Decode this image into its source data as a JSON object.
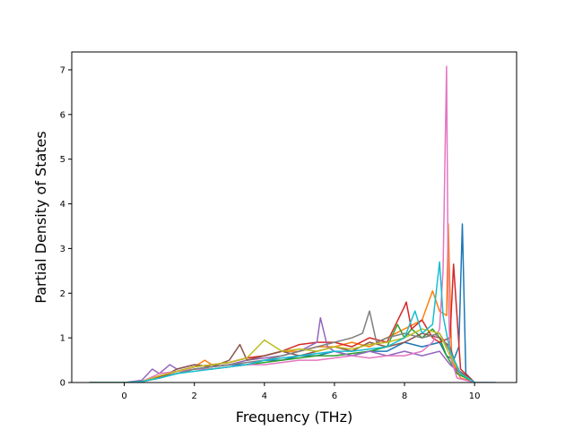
{
  "chart_data": {
    "type": "line",
    "title": "",
    "xlabel": "Frequency (THz)",
    "ylabel": "Partial Density of States",
    "xlim": [
      -1.5,
      11.2
    ],
    "ylim": [
      0,
      7.4
    ],
    "xticks": [
      0,
      2,
      4,
      6,
      8,
      10
    ],
    "yticks": [
      0,
      1,
      2,
      3,
      4,
      5,
      6,
      7
    ],
    "xtick_labels": [
      "0",
      "2",
      "4",
      "6",
      "8",
      "10"
    ],
    "ytick_labels": [
      "0",
      "1",
      "2",
      "3",
      "4",
      "5",
      "6",
      "7"
    ],
    "grid": false,
    "legend": "none",
    "series": [
      {
        "color": "#1f77b4",
        "x": [
          -1.0,
          0.0,
          0.5,
          1.0,
          1.5,
          2.0,
          2.5,
          3.0,
          3.5,
          4.0,
          4.5,
          5.0,
          5.5,
          6.0,
          6.5,
          7.0,
          7.5,
          8.0,
          8.5,
          9.0,
          9.2,
          9.4,
          9.55,
          9.65,
          9.75,
          10.0,
          10.6
        ],
        "y": [
          0,
          0,
          0.02,
          0.1,
          0.2,
          0.3,
          0.35,
          0.4,
          0.4,
          0.5,
          0.5,
          0.6,
          0.6,
          0.7,
          0.6,
          0.7,
          0.7,
          0.9,
          0.8,
          0.9,
          0.6,
          0.5,
          0.8,
          3.55,
          0.2,
          0,
          0
        ]
      },
      {
        "color": "#ff7f0e",
        "x": [
          -1.0,
          0.0,
          0.5,
          1.0,
          1.5,
          2.0,
          2.3,
          2.5,
          3.0,
          3.5,
          4.0,
          4.5,
          5.0,
          5.5,
          6.0,
          6.5,
          7.0,
          7.5,
          8.0,
          8.5,
          8.8,
          9.0,
          9.2,
          9.25,
          9.35,
          9.6,
          10.0
        ],
        "y": [
          0,
          0,
          0.03,
          0.15,
          0.25,
          0.35,
          0.5,
          0.4,
          0.45,
          0.55,
          0.6,
          0.7,
          0.7,
          0.8,
          0.8,
          0.9,
          0.8,
          1.0,
          1.2,
          1.4,
          2.05,
          1.6,
          1.5,
          3.55,
          0.5,
          0.1,
          0
        ]
      },
      {
        "color": "#2ca02c",
        "x": [
          -1.0,
          0.0,
          0.5,
          1.0,
          1.5,
          2.0,
          2.5,
          3.0,
          3.5,
          4.0,
          4.5,
          5.0,
          5.5,
          6.0,
          6.5,
          7.0,
          7.5,
          7.8,
          8.0,
          8.2,
          8.5,
          8.8,
          9.0,
          9.2,
          9.5,
          10.0
        ],
        "y": [
          0,
          0,
          0.02,
          0.1,
          0.2,
          0.3,
          0.3,
          0.35,
          0.4,
          0.45,
          0.5,
          0.55,
          0.6,
          0.6,
          0.65,
          0.7,
          0.8,
          1.3,
          1.0,
          1.2,
          1.0,
          1.2,
          1.0,
          0.6,
          0.2,
          0
        ]
      },
      {
        "color": "#d62728",
        "x": [
          -1.0,
          0.0,
          0.5,
          1.0,
          1.5,
          2.0,
          2.5,
          3.0,
          3.5,
          4.0,
          4.5,
          5.0,
          5.5,
          6.0,
          6.5,
          7.0,
          7.5,
          8.0,
          8.05,
          8.2,
          8.5,
          8.8,
          9.0,
          9.3,
          9.4,
          9.6,
          10.0
        ],
        "y": [
          0,
          0,
          0.02,
          0.12,
          0.25,
          0.35,
          0.4,
          0.45,
          0.55,
          0.6,
          0.7,
          0.85,
          0.9,
          0.9,
          0.8,
          1.0,
          0.9,
          1.7,
          1.8,
          1.2,
          1.4,
          1.0,
          0.9,
          1.0,
          2.65,
          0.3,
          0
        ]
      },
      {
        "color": "#9467bd",
        "x": [
          -1.0,
          0.0,
          0.5,
          0.8,
          1.0,
          1.3,
          1.5,
          2.0,
          2.5,
          3.0,
          3.5,
          4.0,
          4.5,
          5.0,
          5.5,
          5.6,
          5.8,
          6.0,
          6.5,
          7.0,
          7.5,
          8.0,
          8.5,
          9.0,
          9.3,
          9.6,
          10.0
        ],
        "y": [
          0,
          0,
          0.05,
          0.3,
          0.2,
          0.4,
          0.3,
          0.4,
          0.35,
          0.4,
          0.5,
          0.55,
          0.6,
          0.7,
          0.9,
          1.45,
          0.8,
          0.7,
          0.6,
          0.7,
          0.6,
          0.7,
          0.6,
          0.7,
          0.4,
          0.2,
          0
        ]
      },
      {
        "color": "#8c564b",
        "x": [
          -1.0,
          0.0,
          0.5,
          1.0,
          1.5,
          2.0,
          2.5,
          3.0,
          3.3,
          3.5,
          4.0,
          4.5,
          5.0,
          5.5,
          6.0,
          6.5,
          7.0,
          7.5,
          8.0,
          8.5,
          9.0,
          9.3,
          9.5,
          10.0
        ],
        "y": [
          0,
          0,
          0.02,
          0.1,
          0.3,
          0.4,
          0.35,
          0.5,
          0.85,
          0.5,
          0.6,
          0.7,
          0.6,
          0.7,
          0.8,
          0.7,
          0.9,
          0.8,
          0.9,
          1.1,
          1.0,
          0.8,
          0.3,
          0
        ]
      },
      {
        "color": "#e377c2",
        "x": [
          -1.0,
          0.0,
          0.5,
          1.0,
          1.5,
          2.0,
          2.5,
          3.0,
          3.5,
          4.0,
          4.5,
          5.0,
          5.5,
          6.0,
          6.5,
          7.0,
          7.5,
          8.0,
          8.5,
          8.8,
          9.0,
          9.1,
          9.2,
          9.25,
          9.3,
          9.5,
          10.0
        ],
        "y": [
          0,
          0,
          0.02,
          0.2,
          0.25,
          0.3,
          0.3,
          0.35,
          0.4,
          0.4,
          0.45,
          0.5,
          0.5,
          0.55,
          0.6,
          0.55,
          0.6,
          0.6,
          0.7,
          0.9,
          1.2,
          2.5,
          7.08,
          2.0,
          0.6,
          0.1,
          0
        ]
      },
      {
        "color": "#7f7f7f",
        "x": [
          -1.0,
          0.0,
          0.5,
          1.0,
          1.5,
          2.0,
          2.5,
          3.0,
          3.5,
          4.0,
          4.5,
          5.0,
          5.5,
          6.0,
          6.5,
          6.8,
          7.0,
          7.2,
          7.5,
          8.0,
          8.5,
          9.0,
          9.3,
          9.6,
          10.0
        ],
        "y": [
          0,
          0,
          0.02,
          0.1,
          0.2,
          0.3,
          0.35,
          0.4,
          0.45,
          0.5,
          0.6,
          0.7,
          0.8,
          0.9,
          1.0,
          1.1,
          1.6,
          0.9,
          1.0,
          1.1,
          1.0,
          1.1,
          0.7,
          0.2,
          0
        ]
      },
      {
        "color": "#bcbd22",
        "x": [
          -1.0,
          0.0,
          0.5,
          1.0,
          1.5,
          2.0,
          2.5,
          3.0,
          3.5,
          4.0,
          4.5,
          5.0,
          5.5,
          6.0,
          6.5,
          7.0,
          7.5,
          8.0,
          8.5,
          9.0,
          9.3,
          9.6,
          10.0
        ],
        "y": [
          0,
          0,
          0.02,
          0.15,
          0.25,
          0.35,
          0.4,
          0.45,
          0.55,
          0.95,
          0.7,
          0.75,
          0.7,
          0.8,
          0.75,
          0.85,
          0.9,
          1.0,
          1.2,
          1.1,
          0.6,
          0.2,
          0
        ]
      },
      {
        "color": "#17becf",
        "x": [
          -1.0,
          0.0,
          0.5,
          1.0,
          1.5,
          2.0,
          2.5,
          3.0,
          3.5,
          4.0,
          4.5,
          5.0,
          5.5,
          6.0,
          6.5,
          7.0,
          7.5,
          8.0,
          8.3,
          8.5,
          8.8,
          9.0,
          9.1,
          9.3,
          9.6,
          10.0
        ],
        "y": [
          0,
          0,
          0.02,
          0.1,
          0.2,
          0.25,
          0.3,
          0.35,
          0.4,
          0.5,
          0.55,
          0.6,
          0.65,
          0.7,
          0.7,
          0.75,
          0.8,
          1.0,
          1.6,
          1.1,
          1.3,
          2.7,
          1.5,
          0.7,
          0.2,
          0
        ]
      }
    ]
  }
}
